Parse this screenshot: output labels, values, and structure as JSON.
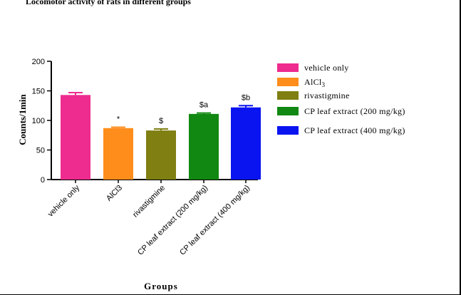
{
  "header_text": "Locomotor activity of rats in different groups",
  "chart_data": {
    "type": "bar",
    "title": "",
    "xlabel": "Groups",
    "ylabel": "Counts/1min",
    "ylim": [
      0,
      200
    ],
    "yticks": [
      0,
      50,
      100,
      150,
      200
    ],
    "grid": false,
    "legend_position": "right",
    "categories": [
      "vehicle only",
      "AlCl3",
      "rivastigmine",
      "CP leaf extract (200 mg/kg)",
      "CP leaf extract (400 mg/kg)"
    ],
    "values": [
      143,
      87,
      83,
      111,
      122
    ],
    "errors": [
      4,
      1.5,
      2.5,
      1.5,
      3
    ],
    "annotations": [
      "",
      "*",
      "$",
      "$a",
      "$b"
    ],
    "colors": [
      "#EE2B8E",
      "#FF8D1C",
      "#7F7F12",
      "#118811",
      "#0A14F0"
    ],
    "legend": [
      {
        "label": "vehicle only",
        "color": "#EE2B8E"
      },
      {
        "label": "AlCl",
        "sub": "3",
        "color": "#FF8D1C"
      },
      {
        "label": "rivastigmine",
        "color": "#7F7F12"
      },
      {
        "label": "CP leaf extract (200 mg/kg)",
        "color": "#118811"
      },
      {
        "label": "CP leaf extract (400 mg/kg)",
        "color": "#0A14F0"
      }
    ]
  }
}
